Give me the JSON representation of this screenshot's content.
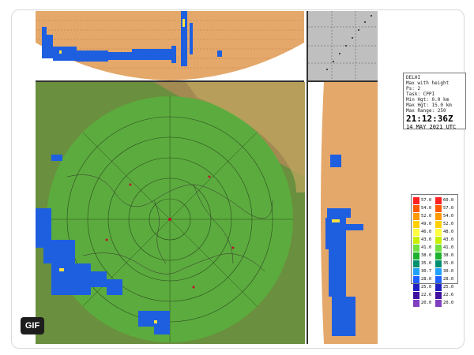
{
  "info": {
    "line1": "DELHI",
    "line2": "Max with height",
    "line3": "Ps: 2",
    "line4": "Task: CPPI",
    "line5": "Min Hgt: 0.0 km",
    "line6": "Max Hgt: 15.0 km",
    "line7": "Max Range: 250",
    "time": "21:12:36Z",
    "date": "14 MAY 2021 UTC"
  },
  "legend": {
    "left": [
      "57.0",
      "54.0",
      "52.0",
      "49.0",
      "46.0",
      "43.0",
      "41.0",
      "38.0",
      "35.0",
      "30.7",
      "28.0",
      "25.0",
      "22.6",
      "20.0"
    ],
    "right": [
      "60.0",
      "57.0",
      "54.0",
      "52.0",
      "48.0",
      "43.0",
      "41.0",
      "38.0",
      "35.0",
      "30.0",
      "28.0",
      "25.0",
      "22.6",
      "20.0"
    ],
    "colors": [
      "#ff2020",
      "#ff5a00",
      "#ff9a00",
      "#ffd000",
      "#ffff40",
      "#c8f000",
      "#70e040",
      "#20b030",
      "#009070",
      "#20a0ff",
      "#2060ff",
      "#2020c0",
      "#4010a0",
      "#8040c0"
    ]
  },
  "badge": {
    "label": "GIF"
  },
  "colors": {
    "terrain": "#6a8f3e",
    "range_disk": "#5cab3e",
    "panel_bg": "#e4a86a",
    "echo": "#1e5fe0"
  }
}
